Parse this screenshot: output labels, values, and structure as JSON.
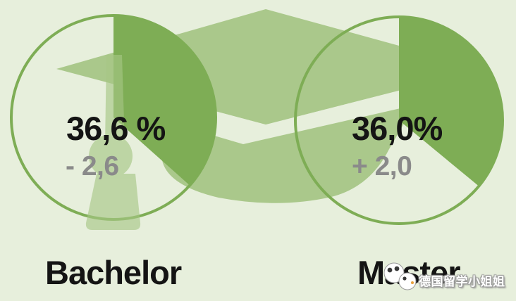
{
  "charts": [
    {
      "label": "Bachelor",
      "value_label": "36,6 %",
      "percent": 36.6,
      "change_label": "- 2,6",
      "change": -2.6
    },
    {
      "label": "Master",
      "value_label": "36,0%",
      "percent": 36.0,
      "change_label": "+ 2,0",
      "change": 2.0
    }
  ],
  "chart_data": [
    {
      "type": "pie",
      "title": "Bachelor",
      "slices": [
        {
          "label": "share",
          "value": 36.6
        },
        {
          "label": "remainder",
          "value": 63.4
        }
      ],
      "center_label": "36,6 %",
      "change_annotation": "- 2,6",
      "start_angle_deg": 0,
      "direction": "clockwise"
    },
    {
      "type": "pie",
      "title": "Master",
      "slices": [
        {
          "label": "share",
          "value": 36.0
        },
        {
          "label": "remainder",
          "value": 64.0
        }
      ],
      "center_label": "36,0%",
      "change_annotation": "+ 2,0",
      "start_angle_deg": 0,
      "direction": "clockwise"
    }
  ],
  "background_graphic": "graduation-cap",
  "watermark": {
    "text": "德国留学小姐姐",
    "icon": "mascot-avatar-icon"
  },
  "colors": {
    "background": "#e7efdc",
    "cap_green": "#aac88b",
    "pie_fill": "#7ead55",
    "pie_stroke": "#7ead55",
    "tassel_overlay": "#a6c685",
    "value_text": "#141414",
    "change_text": "#8a8a8a",
    "watermark_text": "#ffffff"
  }
}
